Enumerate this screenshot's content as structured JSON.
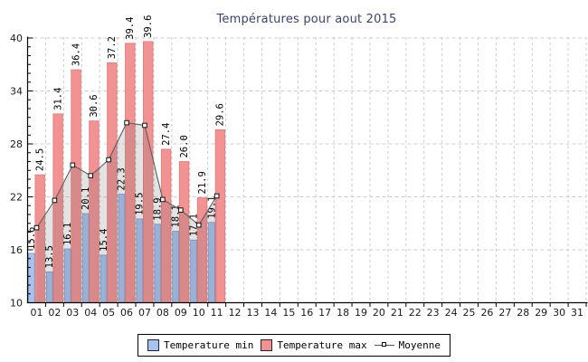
{
  "chart_data": {
    "type": "bar+line",
    "title": "Températures pour aout 2015",
    "x_categories": [
      "01",
      "02",
      "03",
      "04",
      "05",
      "06",
      "07",
      "08",
      "09",
      "10",
      "11",
      "12",
      "13",
      "14",
      "15",
      "16",
      "17",
      "18",
      "19",
      "20",
      "21",
      "22",
      "23",
      "24",
      "25",
      "26",
      "27",
      "28",
      "29",
      "30",
      "31"
    ],
    "series": [
      {
        "name": "Temperature min",
        "type": "bar",
        "values": [
          15.6,
          13.5,
          16.1,
          20.1,
          15.4,
          22.3,
          19.5,
          18.9,
          18.1,
          17.1,
          19.1
        ]
      },
      {
        "name": "Temperature max",
        "type": "bar",
        "values": [
          24.5,
          31.4,
          36.4,
          30.6,
          37.2,
          39.4,
          39.6,
          27.4,
          26.0,
          21.9,
          29.6
        ]
      },
      {
        "name": "Moyenne",
        "type": "line",
        "values": [
          18.5,
          21.6,
          25.6,
          24.4,
          26.2,
          30.4,
          30.1,
          21.7,
          20.5,
          18.8,
          22.1
        ]
      }
    ],
    "ylim": [
      10,
      40
    ],
    "yticks": [
      10,
      16,
      22,
      28,
      34,
      40
    ],
    "y_minor_step": 1,
    "grid": "dashed",
    "legend_position": "bottom-center",
    "colors": {
      "min": "#a6c2ee",
      "min_border": "#7d99cc",
      "max": "#f39292",
      "max_border": "#d97d7d",
      "grid": "#cccccc",
      "line": "#5f5f5f",
      "marker_fill": "#ffffff",
      "marker_border": "#111111",
      "area": "rgba(100,100,100,0.18)",
      "title": "#3b4368",
      "axis": "#000000",
      "tick_label": "#1a1a1a"
    }
  },
  "legend": {
    "items": [
      {
        "label": "Temperature min"
      },
      {
        "label": "Temperature max"
      },
      {
        "label": "Moyenne"
      }
    ]
  }
}
